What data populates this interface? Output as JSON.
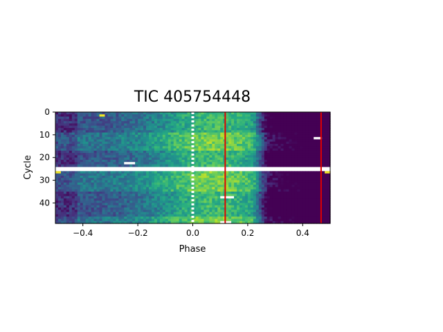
{
  "chart_data": {
    "type": "heatmap",
    "title": "TIC 405754448",
    "xlabel": "Phase",
    "ylabel": "Cycle",
    "xlim": [
      -0.5,
      0.5
    ],
    "ylim": [
      49,
      0
    ],
    "xticks": [
      {
        "value": -0.4,
        "label": "−0.4"
      },
      {
        "value": -0.2,
        "label": "−0.2"
      },
      {
        "value": 0.0,
        "label": "0.0"
      },
      {
        "value": 0.2,
        "label": "0.2"
      },
      {
        "value": 0.4,
        "label": "0.4"
      }
    ],
    "yticks": [
      {
        "value": 0,
        "label": "0"
      },
      {
        "value": 10,
        "label": "10"
      },
      {
        "value": 20,
        "label": "20"
      },
      {
        "value": 30,
        "label": "30"
      },
      {
        "value": 40,
        "label": "40"
      }
    ],
    "colormap": "viridis",
    "n_phase_bins": 100,
    "n_cycles": 49,
    "gap_cycles": [
      24,
      25
    ],
    "vertical_lines": [
      {
        "x": 0.118,
        "color": "#e00000"
      },
      {
        "x": 0.467,
        "color": "#e00000"
      }
    ],
    "dotted_line": {
      "x": 0.0,
      "color": "#ffffff"
    },
    "missing_segments": [
      {
        "cycle": 1,
        "x0": -0.34,
        "x1": -0.32,
        "kind": "bright"
      },
      {
        "cycle": 11,
        "x0": 0.44,
        "x1": 0.47,
        "kind": "gap"
      },
      {
        "cycle": 22,
        "x0": -0.25,
        "x1": -0.21,
        "kind": "gap"
      },
      {
        "cycle": 26,
        "x0": -0.5,
        "x1": -0.48,
        "kind": "bright"
      },
      {
        "cycle": 26,
        "x0": 0.48,
        "x1": 0.5,
        "kind": "bright"
      },
      {
        "cycle": 37,
        "x0": 0.1,
        "x1": 0.15,
        "kind": "gap"
      },
      {
        "cycle": 48,
        "x0": 0.1,
        "x1": 0.14,
        "kind": "gap"
      }
    ],
    "profile": {
      "bright_center": 0.08,
      "bright_width": 0.24,
      "dark_start": 0.22,
      "dark_end": 0.5,
      "dark_rows": [
        [
          0,
          8
        ],
        [
          17,
          23
        ],
        [
          35,
          45
        ]
      ]
    }
  }
}
